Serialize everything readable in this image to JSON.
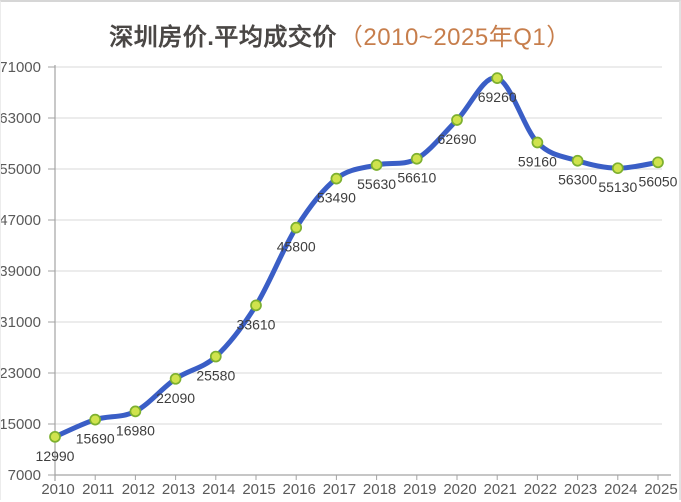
{
  "title": {
    "main": "深圳房价.平均成交价",
    "accent": "（2010~2025年Q1）"
  },
  "chart_data": {
    "type": "line",
    "title": "深圳房价.平均成交价（2010~2025年Q1）",
    "categories": [
      "2010",
      "2011",
      "2012",
      "2013",
      "2014",
      "2015",
      "2016",
      "2017",
      "2018",
      "2019",
      "2020",
      "2021",
      "2022",
      "2023",
      "2024",
      "2025"
    ],
    "values": [
      12990,
      15690,
      16980,
      22090,
      25580,
      33610,
      45800,
      53490,
      55630,
      56610,
      62690,
      69260,
      59160,
      56300,
      55130,
      56050
    ],
    "xlabel": "",
    "ylabel": "",
    "ylim": [
      7000,
      71000
    ],
    "y_ticks": [
      7000,
      15000,
      23000,
      31000,
      39000,
      47000,
      55000,
      63000,
      71000
    ],
    "grid": "horizontal",
    "legend": "none",
    "smooth": true,
    "data_labels": true,
    "colors": {
      "line": "#3a5ec6",
      "marker_fill": "#cfe34d",
      "marker_stroke": "#7db02f",
      "title_main": "#4a4745",
      "title_accent": "#c77e4c",
      "axis_text": "#5a5a5a",
      "data_label_text": "#3e3e3e",
      "gridline": "#dadada",
      "axis_line": "#a3a3a3",
      "background": "#ffffff"
    }
  }
}
